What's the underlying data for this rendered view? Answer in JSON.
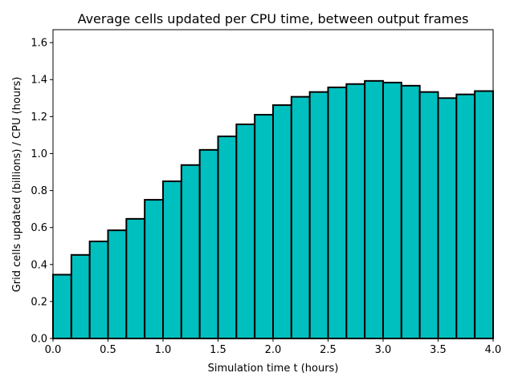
{
  "chart_data": {
    "type": "bar",
    "title": "Average cells updated per CPU time, between output frames",
    "xlabel": "Simulation time t (hours)",
    "ylabel": "Grid cells updated (billions) / CPU (hours)",
    "xlim": [
      0.0,
      4.0
    ],
    "ylim": [
      0.0,
      1.67
    ],
    "xticks": [
      "0.0",
      "0.5",
      "1.0",
      "1.5",
      "2.0",
      "2.5",
      "3.0",
      "3.5",
      "4.0"
    ],
    "yticks": [
      "0.0",
      "0.2",
      "0.4",
      "0.6",
      "0.8",
      "1.0",
      "1.2",
      "1.4",
      "1.6"
    ],
    "bin_width": 0.1667,
    "x": [
      0.0,
      0.1667,
      0.3333,
      0.5,
      0.6667,
      0.8333,
      1.0,
      1.1667,
      1.3333,
      1.5,
      1.6667,
      1.8333,
      2.0,
      2.1667,
      2.3333,
      2.5,
      2.6667,
      2.8333,
      3.0,
      3.1667,
      3.3333,
      3.5,
      3.6667,
      3.8333
    ],
    "values": [
      0.345,
      0.452,
      0.525,
      0.585,
      0.647,
      0.75,
      0.85,
      0.938,
      1.02,
      1.093,
      1.158,
      1.21,
      1.262,
      1.307,
      1.333,
      1.358,
      1.376,
      1.393,
      1.384,
      1.367,
      1.333,
      1.3,
      1.32,
      1.338
    ],
    "bar_color": "#00BFBF",
    "edge_color": "#000000",
    "grid": false,
    "legend": null
  }
}
